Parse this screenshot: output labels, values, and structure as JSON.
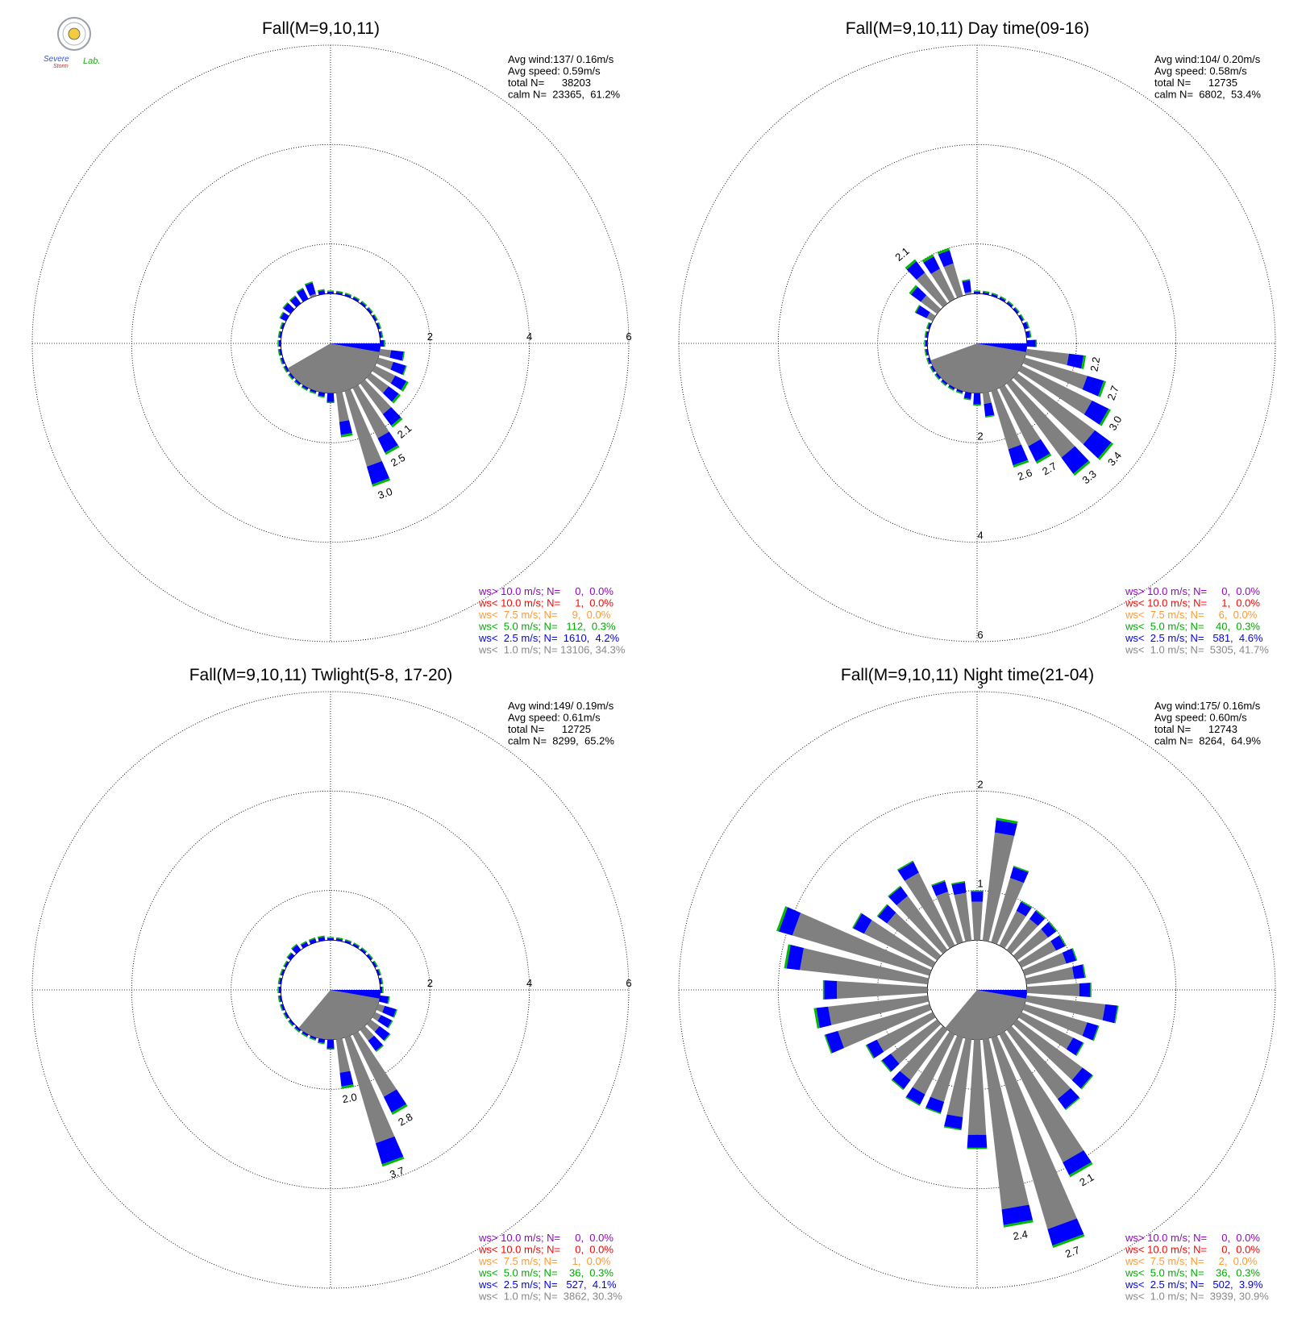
{
  "logo": {
    "text_line1": "Severe",
    "text_line2": "Storm",
    "text_lab": "Lab."
  },
  "chart_data": [
    {
      "type": "wind-rose",
      "title": "Fall(M=9,10,11)",
      "stats": [
        "Avg wind:137/ 0.16m/s",
        "Avg speed: 0.59m/s",
        "total N=      38203",
        "calm N=  23365,  61.2%"
      ],
      "rings": [
        2,
        4,
        6
      ],
      "ring_labels": [
        "2",
        "4",
        "6"
      ],
      "ring_label_dir": "east",
      "calm_sector": {
        "from_deg": 90,
        "to_deg": 240
      },
      "bars": [
        {
          "dir": 0,
          "v": 0.9
        },
        {
          "dir": 10,
          "v": 0.92
        },
        {
          "dir": 20,
          "v": 0.95
        },
        {
          "dir": 30,
          "v": 0.97
        },
        {
          "dir": 40,
          "v": 0.97
        },
        {
          "dir": 50,
          "v": 1.0
        },
        {
          "dir": 60,
          "v": 1.0
        },
        {
          "dir": 70,
          "v": 1.0
        },
        {
          "dir": 80,
          "v": 1.0
        },
        {
          "dir": 90,
          "v": 1.1
        },
        {
          "dir": 100,
          "v": 1.5
        },
        {
          "dir": 110,
          "v": 1.6
        },
        {
          "dir": 120,
          "v": 1.75
        },
        {
          "dir": 130,
          "v": 1.75
        },
        {
          "dir": 140,
          "v": 2.1,
          "label": "2.1"
        },
        {
          "dir": 150,
          "v": 2.5,
          "label": "2.5"
        },
        {
          "dir": 160,
          "v": 3.0,
          "label": "3.0"
        },
        {
          "dir": 170,
          "v": 1.9
        },
        {
          "dir": 180,
          "v": 1.2
        },
        {
          "dir": 190,
          "v": 1.1
        },
        {
          "dir": 200,
          "v": 1.0
        },
        {
          "dir": 210,
          "v": 1.0
        },
        {
          "dir": 220,
          "v": 1.0
        },
        {
          "dir": 230,
          "v": 1.0
        },
        {
          "dir": 240,
          "v": 1.0
        },
        {
          "dir": 250,
          "v": 1.0
        },
        {
          "dir": 260,
          "v": 1.0
        },
        {
          "dir": 270,
          "v": 1.0
        },
        {
          "dir": 280,
          "v": 1.0
        },
        {
          "dir": 290,
          "v": 1.05
        },
        {
          "dir": 300,
          "v": 1.15
        },
        {
          "dir": 310,
          "v": 1.2
        },
        {
          "dir": 320,
          "v": 1.2
        },
        {
          "dir": 330,
          "v": 1.25
        },
        {
          "dir": 340,
          "v": 1.3
        },
        {
          "dir": 350,
          "v": 1.1
        }
      ],
      "legend": [
        {
          "text": "ws> 10.0 m/s; N=     0,  0.0%",
          "color": "#9900cc"
        },
        {
          "text": "ws< 10.0 m/s; N=     1,  0.0%",
          "color": "#ff0000"
        },
        {
          "text": "ws<  7.5 m/s; N=     9,  0.0%",
          "color": "#ff9933"
        },
        {
          "text": "ws<  5.0 m/s; N=   112,  0.3%",
          "color": "#00aa00"
        },
        {
          "text": "ws<  2.5 m/s; N=  1610,  4.2%",
          "color": "#0000ff"
        },
        {
          "text": "ws<  1.0 m/s; N= 13106, 34.3%",
          "color": "#888888"
        }
      ]
    },
    {
      "type": "wind-rose",
      "title": "Fall(M=9,10,11) Day time(09-16)",
      "stats": [
        "Avg wind:104/ 0.20m/s",
        "Avg speed: 0.58m/s",
        "total N=      12735",
        "calm N=  6802,  53.4%"
      ],
      "rings": [
        2,
        4,
        6
      ],
      "ring_labels": [
        "2",
        "4",
        "6"
      ],
      "ring_label_dir": "south",
      "calm_sector": {
        "from_deg": 90,
        "to_deg": 250
      },
      "bars": [
        {
          "dir": 0,
          "v": 1.0
        },
        {
          "dir": 10,
          "v": 1.0
        },
        {
          "dir": 20,
          "v": 1.0
        },
        {
          "dir": 30,
          "v": 1.0
        },
        {
          "dir": 40,
          "v": 1.0
        },
        {
          "dir": 50,
          "v": 1.05
        },
        {
          "dir": 60,
          "v": 1.05
        },
        {
          "dir": 70,
          "v": 1.1
        },
        {
          "dir": 80,
          "v": 1.1
        },
        {
          "dir": 90,
          "v": 1.2
        },
        {
          "dir": 100,
          "v": 2.2,
          "label": "2.2"
        },
        {
          "dir": 110,
          "v": 2.7,
          "label": "2.7"
        },
        {
          "dir": 120,
          "v": 3.0,
          "label": "3.0"
        },
        {
          "dir": 130,
          "v": 3.4,
          "label": "3.4"
        },
        {
          "dir": 140,
          "v": 3.3,
          "label": "3.3"
        },
        {
          "dir": 150,
          "v": 2.7,
          "label": "2.7"
        },
        {
          "dir": 160,
          "v": 2.6,
          "label": "2.6"
        },
        {
          "dir": 170,
          "v": 1.5
        },
        {
          "dir": 180,
          "v": 1.25
        },
        {
          "dir": 190,
          "v": 1.15
        },
        {
          "dir": 200,
          "v": 1.05
        },
        {
          "dir": 210,
          "v": 1.0
        },
        {
          "dir": 220,
          "v": 1.0
        },
        {
          "dir": 230,
          "v": 1.0
        },
        {
          "dir": 240,
          "v": 1.0
        },
        {
          "dir": 250,
          "v": 1.0
        },
        {
          "dir": 260,
          "v": 1.0
        },
        {
          "dir": 270,
          "v": 1.0
        },
        {
          "dir": 280,
          "v": 1.0
        },
        {
          "dir": 290,
          "v": 1.05
        },
        {
          "dir": 300,
          "v": 1.4
        },
        {
          "dir": 310,
          "v": 1.7
        },
        {
          "dir": 320,
          "v": 2.1,
          "label": "2.1"
        },
        {
          "dir": 330,
          "v": 2.0
        },
        {
          "dir": 340,
          "v": 2.0
        },
        {
          "dir": 350,
          "v": 1.3
        }
      ],
      "legend": [
        {
          "text": "ws> 10.0 m/s; N=     0,  0.0%",
          "color": "#9900cc"
        },
        {
          "text": "ws< 10.0 m/s; N=     1,  0.0%",
          "color": "#ff0000"
        },
        {
          "text": "ws<  7.5 m/s; N=     6,  0.0%",
          "color": "#ff9933"
        },
        {
          "text": "ws<  5.0 m/s; N=    40,  0.3%",
          "color": "#00aa00"
        },
        {
          "text": "ws<  2.5 m/s; N=   581,  4.6%",
          "color": "#0000ff"
        },
        {
          "text": "ws<  1.0 m/s; N=  5305, 41.7%",
          "color": "#888888"
        }
      ]
    },
    {
      "type": "wind-rose",
      "title": "Fall(M=9,10,11) Twlight(5-8, 17-20)",
      "stats": [
        "Avg wind:149/ 0.19m/s",
        "Avg speed: 0.61m/s",
        "total N=      12725",
        "calm N=  8299,  65.2%"
      ],
      "rings": [
        2,
        4,
        6
      ],
      "ring_labels": [
        "2",
        "4",
        "6"
      ],
      "ring_label_dir": "east",
      "calm_sector": {
        "from_deg": 90,
        "to_deg": 220
      },
      "bars": [
        {
          "dir": 0,
          "v": 0.9
        },
        {
          "dir": 10,
          "v": 0.85
        },
        {
          "dir": 20,
          "v": 0.9
        },
        {
          "dir": 30,
          "v": 0.95
        },
        {
          "dir": 40,
          "v": 0.95
        },
        {
          "dir": 50,
          "v": 0.95
        },
        {
          "dir": 60,
          "v": 0.95
        },
        {
          "dir": 70,
          "v": 1.0
        },
        {
          "dir": 80,
          "v": 1.0
        },
        {
          "dir": 90,
          "v": 1.0
        },
        {
          "dir": 100,
          "v": 1.2
        },
        {
          "dir": 110,
          "v": 1.4
        },
        {
          "dir": 120,
          "v": 1.4
        },
        {
          "dir": 130,
          "v": 1.5
        },
        {
          "dir": 140,
          "v": 1.55
        },
        {
          "dir": 150,
          "v": 2.8,
          "label": "2.8"
        },
        {
          "dir": 160,
          "v": 3.7,
          "label": "3.7"
        },
        {
          "dir": 170,
          "v": 2.0,
          "label": "2.0"
        },
        {
          "dir": 180,
          "v": 1.2
        },
        {
          "dir": 190,
          "v": 1.1
        },
        {
          "dir": 200,
          "v": 1.05
        },
        {
          "dir": 210,
          "v": 1.0
        },
        {
          "dir": 220,
          "v": 1.0
        },
        {
          "dir": 230,
          "v": 1.0
        },
        {
          "dir": 240,
          "v": 1.0
        },
        {
          "dir": 250,
          "v": 1.0
        },
        {
          "dir": 260,
          "v": 1.0
        },
        {
          "dir": 270,
          "v": 1.0
        },
        {
          "dir": 280,
          "v": 1.05
        },
        {
          "dir": 290,
          "v": 1.05
        },
        {
          "dir": 300,
          "v": 1.05
        },
        {
          "dir": 310,
          "v": 1.1
        },
        {
          "dir": 320,
          "v": 1.15
        },
        {
          "dir": 330,
          "v": 1.1
        },
        {
          "dir": 340,
          "v": 1.1
        },
        {
          "dir": 350,
          "v": 1.1
        }
      ],
      "legend": [
        {
          "text": "ws> 10.0 m/s; N=     0,  0.0%",
          "color": "#9900cc"
        },
        {
          "text": "ws< 10.0 m/s; N=     0,  0.0%",
          "color": "#ff0000"
        },
        {
          "text": "ws<  7.5 m/s; N=     1,  0.0%",
          "color": "#ff9933"
        },
        {
          "text": "ws<  5.0 m/s; N=    36,  0.3%",
          "color": "#00aa00"
        },
        {
          "text": "ws<  2.5 m/s; N=   527,  4.1%",
          "color": "#0000ff"
        },
        {
          "text": "ws<  1.0 m/s; N=  3862, 30.3%",
          "color": "#888888"
        }
      ]
    },
    {
      "type": "wind-rose",
      "title": "Fall(M=9,10,11) Night time(21-04)",
      "stats": [
        "Avg wind:175/ 0.16m/s",
        "Avg speed: 0.60m/s",
        "total N=      12743",
        "calm N=  8264,  64.9%"
      ],
      "rings": [
        1,
        2,
        3
      ],
      "ring_labels": [
        "1",
        "2",
        "3"
      ],
      "ring_label_dir": "north",
      "calm_sector": {
        "from_deg": 90,
        "to_deg": 220
      },
      "bars": [
        {
          "dir": 0,
          "v": 1.0
        },
        {
          "dir": 10,
          "v": 1.74
        },
        {
          "dir": 20,
          "v": 1.3
        },
        {
          "dir": 30,
          "v": 1.0
        },
        {
          "dir": 40,
          "v": 1.0
        },
        {
          "dir": 50,
          "v": 1.0
        },
        {
          "dir": 60,
          "v": 1.0
        },
        {
          "dir": 70,
          "v": 1.05
        },
        {
          "dir": 80,
          "v": 1.1
        },
        {
          "dir": 90,
          "v": 1.15
        },
        {
          "dir": 100,
          "v": 1.43
        },
        {
          "dir": 110,
          "v": 1.28
        },
        {
          "dir": 120,
          "v": 1.2
        },
        {
          "dir": 130,
          "v": 1.45
        },
        {
          "dir": 140,
          "v": 1.5
        },
        {
          "dir": 150,
          "v": 2.1,
          "label": "2.1"
        },
        {
          "dir": 160,
          "v": 2.7,
          "label": "2.7"
        },
        {
          "dir": 170,
          "v": 2.4,
          "label": "2.4"
        },
        {
          "dir": 180,
          "v": 1.6
        },
        {
          "dir": 190,
          "v": 1.42
        },
        {
          "dir": 200,
          "v": 1.3
        },
        {
          "dir": 210,
          "v": 1.3
        },
        {
          "dir": 220,
          "v": 1.25
        },
        {
          "dir": 230,
          "v": 1.2
        },
        {
          "dir": 240,
          "v": 1.25
        },
        {
          "dir": 250,
          "v": 1.6
        },
        {
          "dir": 260,
          "v": 1.65
        },
        {
          "dir": 270,
          "v": 1.55
        },
        {
          "dir": 280,
          "v": 1.95
        },
        {
          "dir": 290,
          "v": 2.1
        },
        {
          "dir": 300,
          "v": 1.4
        },
        {
          "dir": 310,
          "v": 1.25
        },
        {
          "dir": 320,
          "v": 1.3
        },
        {
          "dir": 330,
          "v": 1.45
        },
        {
          "dir": 340,
          "v": 1.15
        },
        {
          "dir": 350,
          "v": 1.1
        }
      ],
      "legend": [
        {
          "text": "ws> 10.0 m/s; N=     0,  0.0%",
          "color": "#9900cc"
        },
        {
          "text": "ws< 10.0 m/s; N=     0,  0.0%",
          "color": "#ff0000"
        },
        {
          "text": "ws<  7.5 m/s; N=     2,  0.0%",
          "color": "#ff9933"
        },
        {
          "text": "ws<  5.0 m/s; N=    36,  0.3%",
          "color": "#00aa00"
        },
        {
          "text": "ws<  2.5 m/s; N=   502,  3.9%",
          "color": "#0000ff"
        },
        {
          "text": "ws<  1.0 m/s; N=  3939, 30.9%",
          "color": "#888888"
        }
      ]
    }
  ]
}
